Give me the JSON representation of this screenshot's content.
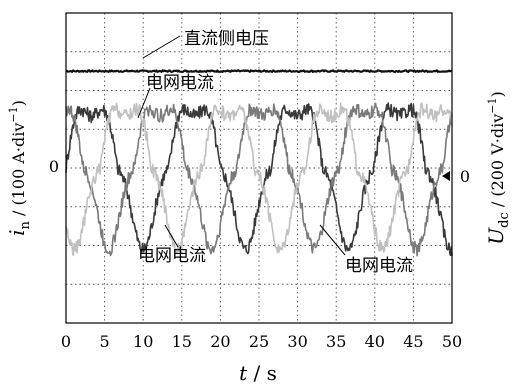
{
  "chart_data": {
    "type": "line",
    "title": "",
    "xlabel_var": "t",
    "xlabel_unit": " / s",
    "ylabel_left": {
      "var": "i",
      "sub": "n",
      "unit_pre": " / (100 A·div",
      "sup": "−1",
      "unit_post": ")"
    },
    "ylabel_right": {
      "var": "U",
      "sub": "dc",
      "unit_pre": " / (200 V·div",
      "sup": "−1",
      "unit_post": ")"
    },
    "xlim": [
      0,
      50
    ],
    "x_ticks": [
      "0",
      "5",
      "10",
      "15",
      "20",
      "25",
      "30",
      "35",
      "40",
      "45",
      "50"
    ],
    "y_divisions": 8,
    "ylim_div": [
      -4,
      4
    ],
    "left_zero_label": "0",
    "right_zero_label": "0",
    "grid": true,
    "annotations": [
      {
        "text": "直流侧电压"
      },
      {
        "text": "电网电流"
      },
      {
        "text": "电网电流"
      },
      {
        "text": "电网电流"
      }
    ],
    "series": [
      {
        "kind": "dc",
        "color": "#111111",
        "level_div": 2.5
      },
      {
        "kind": "current",
        "color": "#3a3a3a",
        "amplitude_div": 1.9,
        "period_s": 13.3,
        "phase_deg": 0
      },
      {
        "kind": "current",
        "color": "#7a7a7a",
        "amplitude_div": 1.9,
        "period_s": 13.3,
        "phase_deg": 120
      },
      {
        "kind": "current",
        "color": "#c0c0c0",
        "amplitude_div": 1.9,
        "period_s": 13.3,
        "phase_deg": 240
      }
    ]
  }
}
